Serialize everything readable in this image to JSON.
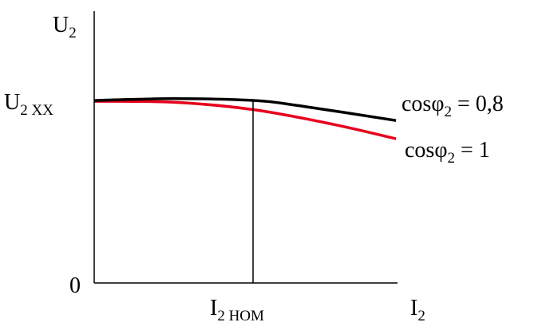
{
  "chart_data": {
    "type": "line",
    "y_axis_label": {
      "main": "U",
      "sub": "2"
    },
    "x_axis_label": {
      "main": "I",
      "sub": "2"
    },
    "origin_label": "0",
    "ytick_label": {
      "main": "U",
      "sub": "2 XX"
    },
    "xtick_label": {
      "main": "I",
      "sub": "2 НОМ"
    },
    "xlim": [
      0,
      1.9
    ],
    "ylim": [
      0,
      1.0
    ],
    "x_ref": 1.0,
    "y_ref": 1.0,
    "series": [
      {
        "name": {
          "main": "cosφ",
          "sub": "2",
          "rest": " = 0,8"
        },
        "color": "#000000",
        "points": [
          [
            0,
            1.0
          ],
          [
            0.5,
            1.01
          ],
          [
            1.0,
            1.0
          ],
          [
            1.3,
            0.97
          ],
          [
            1.9,
            0.89
          ]
        ]
      },
      {
        "name": {
          "main": "cosφ",
          "sub": "2",
          "rest": " = 1"
        },
        "color": "#e8001c",
        "points": [
          [
            0,
            0.995
          ],
          [
            0.5,
            0.99
          ],
          [
            1.0,
            0.95
          ],
          [
            1.5,
            0.87
          ],
          [
            1.9,
            0.79
          ]
        ]
      }
    ]
  }
}
